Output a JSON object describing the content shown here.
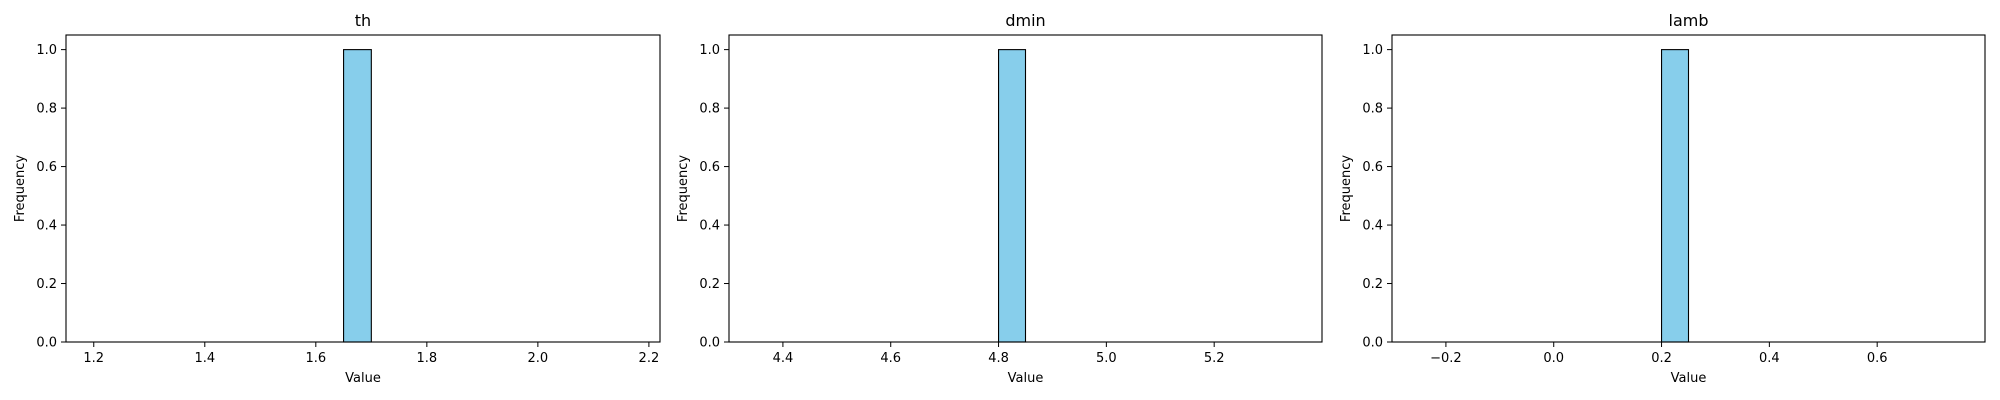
{
  "chart_data": [
    {
      "type": "bar",
      "title": "th",
      "xlabel": "Value",
      "ylabel": "Frequency",
      "bin_edges": [
        1.2,
        1.25,
        1.3,
        1.35,
        1.4,
        1.45,
        1.5,
        1.55,
        1.6,
        1.65,
        1.7,
        1.75,
        1.8,
        1.85,
        1.9,
        1.95,
        2.0,
        2.05,
        2.1,
        2.15,
        2.2
      ],
      "values": [
        0,
        0,
        0,
        0,
        0,
        0,
        0,
        0,
        0,
        1,
        0,
        0,
        0,
        0,
        0,
        0,
        0,
        0,
        0,
        0
      ],
      "xlim": [
        1.15,
        2.22
      ],
      "ylim": [
        0,
        1.05
      ],
      "xticks": [
        1.2,
        1.4,
        1.6,
        1.8,
        2.0,
        2.2
      ],
      "xtick_labels": [
        "1.2",
        "1.4",
        "1.6",
        "1.8",
        "2.0",
        "2.2"
      ],
      "yticks": [
        0,
        0.2,
        0.4,
        0.6,
        0.8,
        1.0
      ],
      "ytick_labels": [
        "0.0",
        "0.2",
        "0.4",
        "0.6",
        "0.8",
        "1.0"
      ],
      "bar_color": "#87ceeb",
      "edge_color": "#000000",
      "grid": false,
      "legend": "none"
    },
    {
      "type": "bar",
      "title": "dmin",
      "xlabel": "Value",
      "ylabel": "Frequency",
      "bin_edges": [
        4.35,
        4.4,
        4.45,
        4.5,
        4.55,
        4.6,
        4.65,
        4.7,
        4.75,
        4.8,
        4.85,
        4.9,
        4.95,
        5.0,
        5.05,
        5.1,
        5.15,
        5.2,
        5.25,
        5.3,
        5.35
      ],
      "values": [
        0,
        0,
        0,
        0,
        0,
        0,
        0,
        0,
        0,
        1,
        0,
        0,
        0,
        0,
        0,
        0,
        0,
        0,
        0,
        0
      ],
      "xlim": [
        4.3,
        5.4
      ],
      "ylim": [
        0,
        1.05
      ],
      "xticks": [
        4.4,
        4.6,
        4.8,
        5.0,
        5.2
      ],
      "xtick_labels": [
        "4.4",
        "4.6",
        "4.8",
        "5.0",
        "5.2"
      ],
      "yticks": [
        0,
        0.2,
        0.4,
        0.6,
        0.8,
        1.0
      ],
      "ytick_labels": [
        "0.0",
        "0.2",
        "0.4",
        "0.6",
        "0.8",
        "1.0"
      ],
      "bar_color": "#87ceeb",
      "edge_color": "#000000",
      "grid": false,
      "legend": "none"
    },
    {
      "type": "bar",
      "title": "lamb",
      "xlabel": "Value",
      "ylabel": "Frequency",
      "bin_edges": [
        -0.25,
        -0.2,
        -0.15,
        -0.1,
        -0.05,
        0.0,
        0.05,
        0.1,
        0.15,
        0.2,
        0.25,
        0.3,
        0.35,
        0.4,
        0.45,
        0.5,
        0.55,
        0.6,
        0.65,
        0.7,
        0.75
      ],
      "values": [
        0,
        0,
        0,
        0,
        0,
        0,
        0,
        0,
        0,
        1,
        0,
        0,
        0,
        0,
        0,
        0,
        0,
        0,
        0,
        0
      ],
      "xlim": [
        -0.3,
        0.8
      ],
      "ylim": [
        0,
        1.05
      ],
      "xticks": [
        -0.2,
        0.0,
        0.2,
        0.4,
        0.6
      ],
      "xtick_labels": [
        "−0.2",
        "0.0",
        "0.2",
        "0.4",
        "0.6"
      ],
      "yticks": [
        0,
        0.2,
        0.4,
        0.6,
        0.8,
        1.0
      ],
      "ytick_labels": [
        "0.0",
        "0.2",
        "0.4",
        "0.6",
        "0.8",
        "1.0"
      ],
      "bar_color": "#87ceeb",
      "edge_color": "#000000",
      "grid": false,
      "legend": "none"
    }
  ]
}
